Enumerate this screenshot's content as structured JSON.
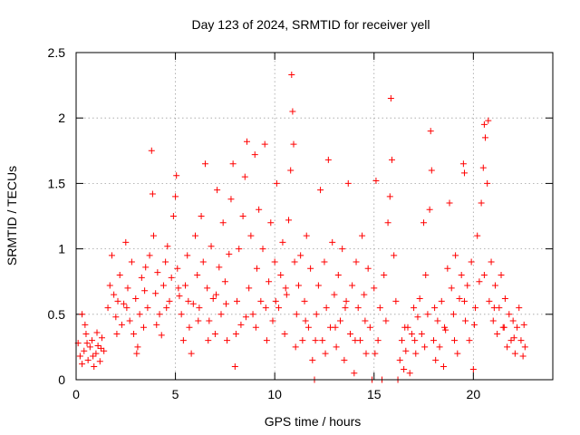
{
  "chart_data": {
    "type": "scatter",
    "title": "Day 123 of 2024, SRMTID for receiver yell",
    "xlabel": "GPS time / hours",
    "ylabel": "SRMTID / TECUs",
    "xlim": [
      0,
      24
    ],
    "ylim": [
      0,
      2.5
    ],
    "x_ticks": [
      0,
      5,
      10,
      15,
      20
    ],
    "x_tick_labels": [
      "0",
      "5",
      "10",
      "15",
      "20"
    ],
    "y_ticks": [
      0,
      0.5,
      1,
      1.5,
      2,
      2.5
    ],
    "y_tick_labels": [
      "0",
      "0.5",
      "1",
      "1.5",
      "2",
      "2.5"
    ],
    "grid": true,
    "marker": "+",
    "marker_color": "#ff0000",
    "series": [
      {
        "name": "SRMTID",
        "points": [
          [
            0.1,
            0.28
          ],
          [
            0.2,
            0.18
          ],
          [
            0.3,
            0.12
          ],
          [
            0.4,
            0.22
          ],
          [
            0.5,
            0.35
          ],
          [
            0.6,
            0.15
          ],
          [
            0.7,
            0.25
          ],
          [
            0.8,
            0.3
          ],
          [
            0.9,
            0.1
          ],
          [
            1.0,
            0.2
          ],
          [
            1.1,
            0.26
          ],
          [
            1.2,
            0.14
          ],
          [
            1.3,
            0.32
          ],
          [
            1.4,
            0.22
          ],
          [
            0.3,
            0.5
          ],
          [
            0.45,
            0.42
          ],
          [
            0.55,
            0.28
          ],
          [
            0.85,
            0.18
          ],
          [
            1.05,
            0.36
          ],
          [
            1.25,
            0.24
          ],
          [
            1.6,
            0.55
          ],
          [
            1.7,
            0.72
          ],
          [
            1.8,
            0.95
          ],
          [
            1.9,
            0.65
          ],
          [
            2.0,
            0.48
          ],
          [
            2.1,
            0.6
          ],
          [
            2.2,
            0.8
          ],
          [
            2.3,
            0.42
          ],
          [
            2.4,
            0.58
          ],
          [
            2.5,
            1.05
          ],
          [
            2.6,
            0.7
          ],
          [
            2.7,
            0.45
          ],
          [
            2.8,
            0.9
          ],
          [
            2.9,
            0.35
          ],
          [
            3.0,
            0.62
          ],
          [
            3.1,
            0.25
          ],
          [
            3.2,
            0.5
          ],
          [
            3.3,
            0.78
          ],
          [
            3.4,
            0.4
          ],
          [
            3.5,
            0.86
          ],
          [
            3.6,
            0.55
          ],
          [
            3.7,
            0.95
          ],
          [
            3.8,
            1.75
          ],
          [
            3.85,
            1.42
          ],
          [
            3.9,
            1.1
          ],
          [
            4.0,
            0.66
          ],
          [
            4.1,
            0.82
          ],
          [
            4.2,
            0.5
          ],
          [
            4.3,
            0.34
          ],
          [
            4.4,
            0.72
          ],
          [
            4.5,
            0.9
          ],
          [
            4.6,
            1.02
          ],
          [
            4.7,
            0.6
          ],
          [
            4.8,
            0.78
          ],
          [
            4.9,
            1.25
          ],
          [
            5.0,
            1.4
          ],
          [
            5.05,
            1.56
          ],
          [
            5.1,
            0.85
          ],
          [
            5.2,
            0.64
          ],
          [
            5.3,
            0.5
          ],
          [
            5.4,
            0.3
          ],
          [
            5.5,
            0.72
          ],
          [
            5.6,
            0.95
          ],
          [
            5.7,
            0.4
          ],
          [
            5.8,
            0.2
          ],
          [
            5.9,
            0.58
          ],
          [
            6.0,
            1.1
          ],
          [
            6.1,
            0.8
          ],
          [
            6.2,
            0.55
          ],
          [
            6.3,
            1.25
          ],
          [
            6.4,
            0.9
          ],
          [
            6.5,
            1.65
          ],
          [
            6.6,
            0.7
          ],
          [
            6.7,
            0.45
          ],
          [
            6.8,
            1.02
          ],
          [
            6.9,
            0.62
          ],
          [
            7.0,
            0.35
          ],
          [
            7.1,
            1.45
          ],
          [
            7.2,
            0.86
          ],
          [
            7.3,
            0.5
          ],
          [
            7.4,
            1.2
          ],
          [
            7.5,
            0.75
          ],
          [
            7.6,
            0.3
          ],
          [
            7.7,
            0.96
          ],
          [
            7.8,
            1.38
          ],
          [
            7.9,
            1.65
          ],
          [
            8.0,
            0.1
          ],
          [
            8.1,
            0.6
          ],
          [
            8.2,
            1.0
          ],
          [
            8.3,
            0.42
          ],
          [
            8.4,
            1.25
          ],
          [
            8.5,
            1.55
          ],
          [
            8.6,
            1.82
          ],
          [
            8.7,
            0.7
          ],
          [
            8.8,
            1.1
          ],
          [
            8.9,
            0.5
          ],
          [
            9.0,
            1.72
          ],
          [
            9.1,
            0.85
          ],
          [
            9.2,
            1.3
          ],
          [
            9.3,
            0.6
          ],
          [
            9.4,
            1.0
          ],
          [
            9.5,
            1.8
          ],
          [
            9.6,
            0.3
          ],
          [
            9.7,
            0.75
          ],
          [
            9.8,
            1.2
          ],
          [
            9.9,
            0.45
          ],
          [
            10.0,
            0.9
          ],
          [
            10.1,
            1.5
          ],
          [
            10.2,
            0.55
          ],
          [
            10.3,
            0.8
          ],
          [
            10.4,
            1.05
          ],
          [
            10.5,
            0.35
          ],
          [
            10.6,
            0.65
          ],
          [
            10.7,
            1.22
          ],
          [
            10.8,
            1.6
          ],
          [
            10.85,
            2.33
          ],
          [
            10.9,
            2.05
          ],
          [
            10.95,
            1.8
          ],
          [
            11.0,
            0.9
          ],
          [
            11.1,
            0.5
          ],
          [
            11.2,
            0.72
          ],
          [
            11.3,
            0.95
          ],
          [
            11.4,
            0.3
          ],
          [
            11.5,
            0.6
          ],
          [
            11.6,
            1.1
          ],
          [
            11.7,
            0.4
          ],
          [
            11.8,
            0.85
          ],
          [
            11.9,
            0.15
          ],
          [
            12.0,
            0.0
          ],
          [
            12.1,
            0.5
          ],
          [
            12.2,
            0.72
          ],
          [
            12.3,
            1.45
          ],
          [
            12.4,
            0.3
          ],
          [
            12.5,
            0.9
          ],
          [
            12.6,
            0.55
          ],
          [
            12.7,
            1.68
          ],
          [
            12.8,
            0.4
          ],
          [
            12.9,
            1.05
          ],
          [
            13.0,
            0.65
          ],
          [
            13.1,
            0.25
          ],
          [
            13.2,
            0.8
          ],
          [
            13.3,
            0.45
          ],
          [
            13.4,
            1.0
          ],
          [
            13.5,
            0.15
          ],
          [
            13.6,
            0.6
          ],
          [
            13.7,
            1.5
          ],
          [
            13.8,
            0.35
          ],
          [
            13.9,
            0.72
          ],
          [
            14.0,
            0.05
          ],
          [
            14.1,
            0.9
          ],
          [
            14.2,
            0.55
          ],
          [
            14.3,
            0.3
          ],
          [
            14.4,
            1.1
          ],
          [
            14.5,
            0.65
          ],
          [
            14.6,
            0.2
          ],
          [
            14.7,
            0.85
          ],
          [
            14.8,
            0.4
          ],
          [
            14.9,
            0.0
          ],
          [
            15.0,
            0.7
          ],
          [
            15.1,
            1.52
          ],
          [
            15.2,
            0.3
          ],
          [
            15.3,
            0.55
          ],
          [
            15.4,
            0.0
          ],
          [
            15.5,
            0.8
          ],
          [
            15.6,
            0.45
          ],
          [
            15.7,
            1.2
          ],
          [
            15.8,
            1.4
          ],
          [
            15.85,
            2.15
          ],
          [
            15.9,
            1.68
          ],
          [
            16.0,
            0.95
          ],
          [
            16.1,
            0.6
          ],
          [
            16.2,
            0.0
          ],
          [
            16.3,
            0.15
          ],
          [
            16.4,
            0.3
          ],
          [
            16.5,
            0.08
          ],
          [
            16.6,
            0.22
          ],
          [
            16.7,
            0.4
          ],
          [
            16.8,
            0.05
          ],
          [
            16.9,
            0.35
          ],
          [
            17.0,
            0.55
          ],
          [
            17.1,
            0.2
          ],
          [
            17.2,
            0.48
          ],
          [
            17.3,
            0.62
          ],
          [
            17.4,
            0.35
          ],
          [
            17.5,
            1.2
          ],
          [
            17.6,
            0.8
          ],
          [
            17.7,
            0.5
          ],
          [
            17.8,
            1.3
          ],
          [
            17.85,
            1.9
          ],
          [
            17.9,
            1.6
          ],
          [
            18.0,
            0.3
          ],
          [
            18.1,
            0.15
          ],
          [
            18.2,
            0.45
          ],
          [
            18.3,
            0.25
          ],
          [
            18.4,
            0.6
          ],
          [
            18.5,
            0.1
          ],
          [
            18.6,
            0.38
          ],
          [
            18.7,
            0.85
          ],
          [
            18.8,
            1.35
          ],
          [
            18.9,
            0.7
          ],
          [
            19.0,
            0.5
          ],
          [
            19.1,
            0.95
          ],
          [
            19.2,
            0.2
          ],
          [
            19.3,
            0.62
          ],
          [
            19.4,
            0.8
          ],
          [
            19.5,
            1.65
          ],
          [
            19.55,
            1.58
          ],
          [
            19.6,
            0.45
          ],
          [
            19.7,
            0.72
          ],
          [
            19.8,
            0.3
          ],
          [
            19.9,
            0.9
          ],
          [
            20.0,
            0.08
          ],
          [
            20.1,
            0.55
          ],
          [
            20.2,
            1.1
          ],
          [
            20.3,
            0.75
          ],
          [
            20.4,
            1.35
          ],
          [
            20.5,
            1.62
          ],
          [
            20.55,
            1.95
          ],
          [
            20.6,
            1.85
          ],
          [
            20.7,
            1.5
          ],
          [
            20.75,
            1.98
          ],
          [
            20.8,
            0.6
          ],
          [
            20.9,
            0.9
          ],
          [
            21.0,
            0.45
          ],
          [
            21.1,
            0.72
          ],
          [
            21.2,
            0.35
          ],
          [
            21.3,
            0.55
          ],
          [
            21.4,
            0.8
          ],
          [
            21.5,
            0.4
          ],
          [
            21.6,
            0.62
          ],
          [
            21.7,
            0.25
          ],
          [
            21.8,
            0.5
          ],
          [
            21.9,
            0.3
          ],
          [
            22.0,
            0.45
          ],
          [
            22.1,
            0.2
          ],
          [
            22.2,
            0.4
          ],
          [
            22.3,
            0.55
          ],
          [
            22.4,
            0.3
          ],
          [
            22.5,
            0.18
          ],
          [
            22.6,
            0.25
          ],
          [
            2.05,
            0.35
          ],
          [
            2.55,
            0.55
          ],
          [
            3.05,
            0.2
          ],
          [
            3.45,
            0.68
          ],
          [
            4.05,
            0.42
          ],
          [
            4.55,
            0.55
          ],
          [
            5.15,
            0.7
          ],
          [
            5.65,
            0.6
          ],
          [
            6.15,
            0.45
          ],
          [
            6.65,
            0.3
          ],
          [
            7.05,
            0.65
          ],
          [
            7.55,
            0.58
          ],
          [
            8.05,
            0.35
          ],
          [
            8.55,
            0.48
          ],
          [
            9.05,
            0.4
          ],
          [
            9.55,
            0.55
          ],
          [
            10.05,
            0.6
          ],
          [
            10.55,
            0.7
          ],
          [
            11.05,
            0.25
          ],
          [
            11.55,
            0.45
          ],
          [
            12.05,
            0.3
          ],
          [
            12.55,
            0.2
          ],
          [
            13.05,
            0.4
          ],
          [
            13.55,
            0.55
          ],
          [
            14.05,
            0.3
          ],
          [
            14.55,
            0.45
          ],
          [
            15.05,
            0.2
          ],
          [
            16.55,
            0.4
          ],
          [
            17.05,
            0.3
          ],
          [
            17.55,
            0.25
          ],
          [
            18.05,
            0.55
          ],
          [
            18.55,
            0.4
          ],
          [
            19.05,
            0.3
          ],
          [
            19.55,
            0.6
          ],
          [
            20.05,
            0.42
          ],
          [
            20.55,
            0.8
          ],
          [
            21.05,
            0.55
          ],
          [
            21.55,
            0.4
          ],
          [
            22.05,
            0.32
          ],
          [
            22.55,
            0.42
          ]
        ]
      }
    ]
  }
}
